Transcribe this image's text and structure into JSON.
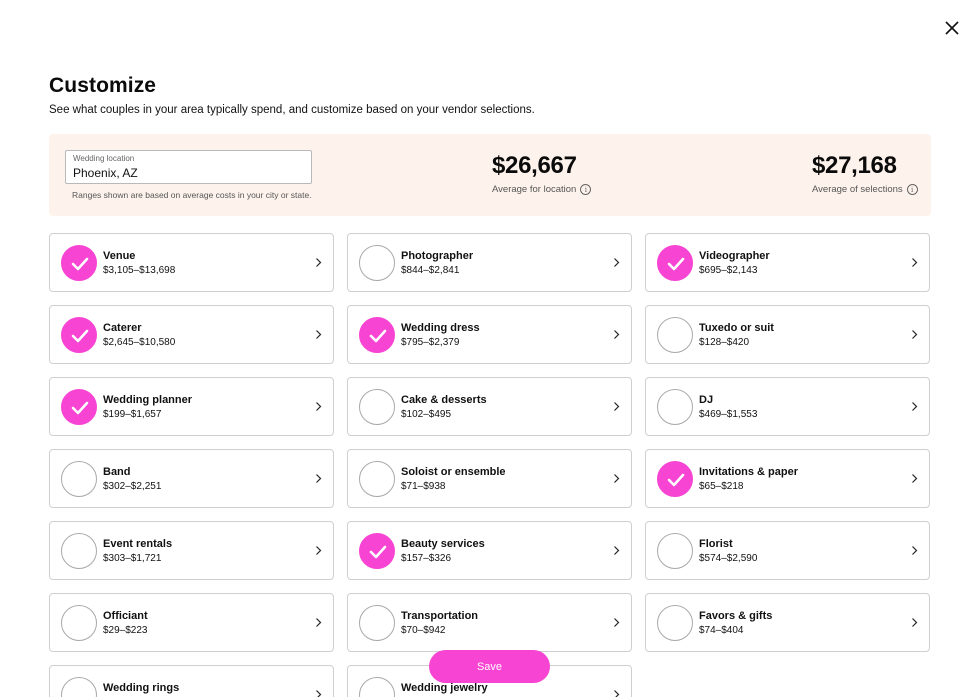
{
  "header": {
    "title": "Customize",
    "subtitle": "See what couples in your area typically spend, and customize based on your vendor selections."
  },
  "summary": {
    "location_label": "Wedding location",
    "location_value": "Phoenix, AZ",
    "note": "Ranges shown are based on average costs in your city or state.",
    "avg_location_value": "$26,667",
    "avg_location_label": "Average for location",
    "avg_selections_value": "$27,168",
    "avg_selections_label": "Average of selections"
  },
  "vendors": [
    {
      "name": "Venue",
      "range": "$3,105–$13,698",
      "selected": true
    },
    {
      "name": "Photographer",
      "range": "$844–$2,841",
      "selected": false
    },
    {
      "name": "Videographer",
      "range": "$695–$2,143",
      "selected": true
    },
    {
      "name": "Caterer",
      "range": "$2,645–$10,580",
      "selected": true
    },
    {
      "name": "Wedding dress",
      "range": "$795–$2,379",
      "selected": true
    },
    {
      "name": "Tuxedo or suit",
      "range": "$128–$420",
      "selected": false
    },
    {
      "name": "Wedding planner",
      "range": "$199–$1,657",
      "selected": true
    },
    {
      "name": "Cake & desserts",
      "range": "$102–$495",
      "selected": false
    },
    {
      "name": "DJ",
      "range": "$469–$1,553",
      "selected": false
    },
    {
      "name": "Band",
      "range": "$302–$2,251",
      "selected": false
    },
    {
      "name": "Soloist or ensemble",
      "range": "$71–$938",
      "selected": false
    },
    {
      "name": "Invitations & paper",
      "range": "$65–$218",
      "selected": true
    },
    {
      "name": "Event rentals",
      "range": "$303–$1,721",
      "selected": false
    },
    {
      "name": "Beauty services",
      "range": "$157–$326",
      "selected": true
    },
    {
      "name": "Florist",
      "range": "$574–$2,590",
      "selected": false
    },
    {
      "name": "Officiant",
      "range": "$29–$223",
      "selected": false
    },
    {
      "name": "Transportation",
      "range": "$70–$942",
      "selected": false
    },
    {
      "name": "Favors & gifts",
      "range": "$74–$404",
      "selected": false
    },
    {
      "name": "Wedding rings",
      "range": "",
      "selected": false
    },
    {
      "name": "Wedding jewelry",
      "range": "",
      "selected": false
    }
  ],
  "save_label": "Save",
  "colors": {
    "accent": "#f744d2",
    "summary_bg": "#fef3ec"
  }
}
